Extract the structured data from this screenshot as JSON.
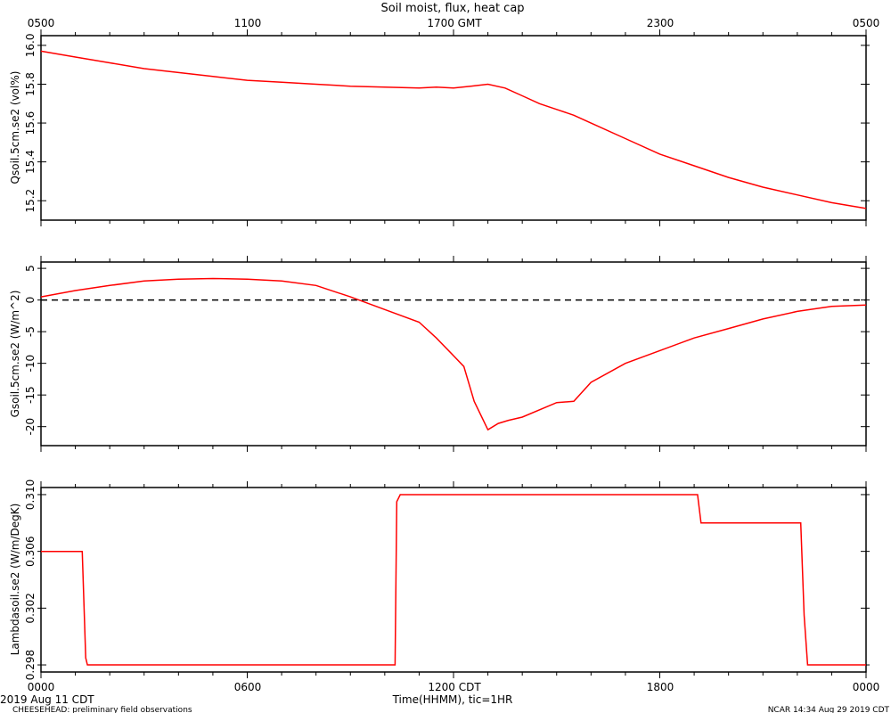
{
  "title": "Soil moist, flux, heat cap",
  "top_axis": {
    "ticks": [
      "0500",
      "1100",
      "1700 GMT",
      "2300",
      "0500"
    ]
  },
  "bottom_axis": {
    "ticks": [
      "0000",
      "0600",
      "1200 CDT",
      "1800",
      "0000"
    ],
    "label": "Time(HHMM), tic=1HR"
  },
  "footer": {
    "date": "2019 Aug 11 CDT",
    "project": "CHEESEHEAD: preliminary field observations",
    "credit": "NCAR 14:34 Aug 29 2019 CDT"
  },
  "colors": {
    "series": "#ff0000",
    "axes": "#000000"
  },
  "chart_data": [
    {
      "type": "line",
      "ylabel": "Qsoil.5cm.se2 (vol%)",
      "ylim": [
        15.1,
        16.05
      ],
      "yticks": [
        "15.2",
        "15.4",
        "15.6",
        "15.8",
        "16.0"
      ],
      "ytick_values": [
        15.2,
        15.4,
        15.6,
        15.8,
        16.0
      ],
      "xlim": [
        0,
        24
      ],
      "series": [
        {
          "x": [
            0,
            1,
            2,
            3,
            4,
            5,
            6,
            7,
            8,
            9,
            10,
            11,
            11.5,
            12,
            12.5,
            13,
            13.5,
            14,
            14.5,
            15,
            15.5,
            16,
            17,
            18,
            19,
            20,
            21,
            22,
            23,
            24
          ],
          "values": [
            15.97,
            15.94,
            15.91,
            15.88,
            15.86,
            15.84,
            15.82,
            15.81,
            15.8,
            15.79,
            15.785,
            15.78,
            15.785,
            15.78,
            15.79,
            15.8,
            15.78,
            15.74,
            15.7,
            15.67,
            15.64,
            15.6,
            15.52,
            15.44,
            15.38,
            15.32,
            15.27,
            15.23,
            15.19,
            15.16
          ]
        }
      ]
    },
    {
      "type": "line",
      "ylabel": "Gsoil.5cm.se2 (W/m^2)",
      "ylim": [
        -23,
        6
      ],
      "yticks": [
        "5",
        "0",
        "-5",
        "-10",
        "-15",
        "-20"
      ],
      "ytick_values": [
        5,
        0,
        -5,
        -10,
        -15,
        -20
      ],
      "xlim": [
        0,
        24
      ],
      "zero_line": "dashed",
      "series": [
        {
          "x": [
            0,
            1,
            2,
            3,
            4,
            5,
            6,
            7,
            8,
            9,
            10,
            11,
            11.5,
            12,
            12.3,
            12.6,
            13,
            13.3,
            13.6,
            14,
            15,
            15.5,
            16,
            17,
            18,
            19,
            20,
            21,
            22,
            23,
            24
          ],
          "values": [
            0.5,
            1.5,
            2.3,
            3.0,
            3.3,
            3.4,
            3.3,
            3.0,
            2.3,
            0.5,
            -1.5,
            -3.5,
            -6.0,
            -8.8,
            -10.5,
            -16.0,
            -20.5,
            -19.5,
            -19.0,
            -18.5,
            -16.2,
            -16.0,
            -13.0,
            -10.0,
            -8.0,
            -6.0,
            -4.5,
            -3.0,
            -1.8,
            -1.0,
            -0.8
          ]
        }
      ]
    },
    {
      "type": "line",
      "ylabel": "Lambdasoil.se2 (W/m/DegK)",
      "ylim": [
        0.2975,
        0.3105
      ],
      "yticks": [
        "0.310",
        "0.306",
        "0.302",
        "0.298"
      ],
      "ytick_values": [
        0.31,
        0.306,
        0.302,
        0.298
      ],
      "xlim": [
        0,
        24
      ],
      "series": [
        {
          "x": [
            0,
            1.2,
            1.3,
            1.35,
            10.3,
            10.35,
            10.45,
            19.1,
            19.2,
            22.1,
            22.2,
            22.3,
            24
          ],
          "values": [
            0.306,
            0.306,
            0.2985,
            0.298,
            0.298,
            0.3095,
            0.31,
            0.31,
            0.308,
            0.308,
            0.3015,
            0.298,
            0.298
          ]
        }
      ]
    }
  ]
}
